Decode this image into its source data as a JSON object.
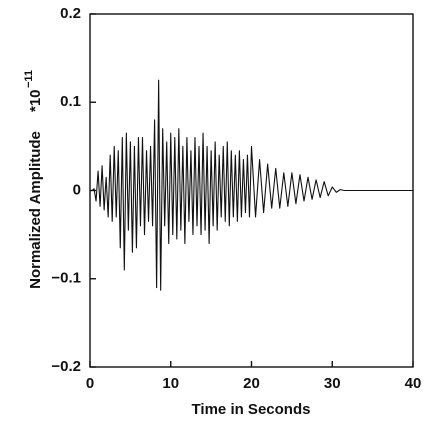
{
  "chart_data": {
    "type": "line",
    "x_label": "Time in Seconds",
    "y_label": "Normalized Amplitude",
    "y_scale_label": "*10",
    "y_scale_exponent": "−11",
    "xlim": [
      0,
      40
    ],
    "xticks": [
      0,
      10,
      20,
      30,
      40
    ],
    "ylim": [
      -0.2,
      0.2
    ],
    "yticks": [
      {
        "value": -0.2,
        "label": "−0.2"
      },
      {
        "value": -0.1,
        "label": "−0.1"
      },
      0,
      0.1,
      0.2
    ],
    "series": [
      {
        "color": "#111111",
        "x": [
          0,
          0.25,
          0.5,
          0.75,
          1,
          1.25,
          1.5,
          1.75,
          2,
          2.25,
          2.5,
          2.75,
          3,
          3.25,
          3.5,
          3.75,
          4,
          4.25,
          4.5,
          4.75,
          5,
          5.25,
          5.5,
          5.75,
          6,
          6.25,
          6.5,
          6.75,
          7,
          7.25,
          7.5,
          7.75,
          8,
          8.25,
          8.5,
          8.75,
          9,
          9.25,
          9.5,
          9.75,
          10,
          10.25,
          10.5,
          10.75,
          11,
          11.25,
          11.5,
          11.75,
          12,
          12.25,
          12.5,
          12.75,
          13,
          13.25,
          13.5,
          13.75,
          14,
          14.25,
          14.5,
          14.75,
          15,
          15.25,
          15.5,
          15.75,
          16,
          16.25,
          16.5,
          16.75,
          17,
          17.25,
          17.5,
          17.75,
          18,
          18.25,
          18.5,
          18.75,
          19,
          19.25,
          19.5,
          19.75,
          20,
          20.5,
          21,
          21.5,
          22,
          22.5,
          23,
          23.5,
          24,
          24.5,
          25,
          25.5,
          26,
          26.5,
          27,
          27.5,
          28,
          28.5,
          29,
          29.5,
          30,
          30.5,
          31,
          31.5,
          32,
          34,
          37,
          40
        ],
        "values": [
          0,
          0,
          0.002,
          -0.012,
          0.022,
          -0.018,
          0.028,
          -0.022,
          0.015,
          -0.03,
          0.04,
          -0.035,
          0.05,
          -0.03,
          0.045,
          -0.065,
          0.06,
          -0.09,
          0.065,
          -0.045,
          0.055,
          -0.07,
          0.05,
          -0.065,
          0.06,
          -0.04,
          0.06,
          -0.05,
          0.045,
          -0.035,
          0.05,
          -0.04,
          0.08,
          -0.11,
          0.125,
          -0.113,
          0.07,
          -0.04,
          0.055,
          -0.06,
          0.065,
          -0.05,
          0.06,
          -0.055,
          0.07,
          -0.045,
          0.05,
          -0.06,
          0.06,
          -0.035,
          0.045,
          -0.05,
          0.06,
          -0.04,
          0.05,
          -0.05,
          0.065,
          -0.045,
          0.05,
          -0.06,
          0.045,
          -0.04,
          0.055,
          -0.045,
          0.04,
          -0.03,
          0.05,
          -0.035,
          0.055,
          -0.04,
          0.045,
          -0.03,
          0.04,
          -0.035,
          0.045,
          -0.03,
          0.035,
          -0.025,
          0.04,
          -0.03,
          0.05,
          -0.03,
          0.035,
          -0.025,
          0.03,
          -0.02,
          0.025,
          -0.02,
          0.02,
          -0.018,
          0.02,
          -0.015,
          0.018,
          -0.012,
          0.015,
          -0.01,
          0.012,
          -0.008,
          0.01,
          -0.006,
          0.004,
          -0.002,
          0.001,
          0,
          0,
          0,
          0,
          0
        ]
      }
    ]
  }
}
